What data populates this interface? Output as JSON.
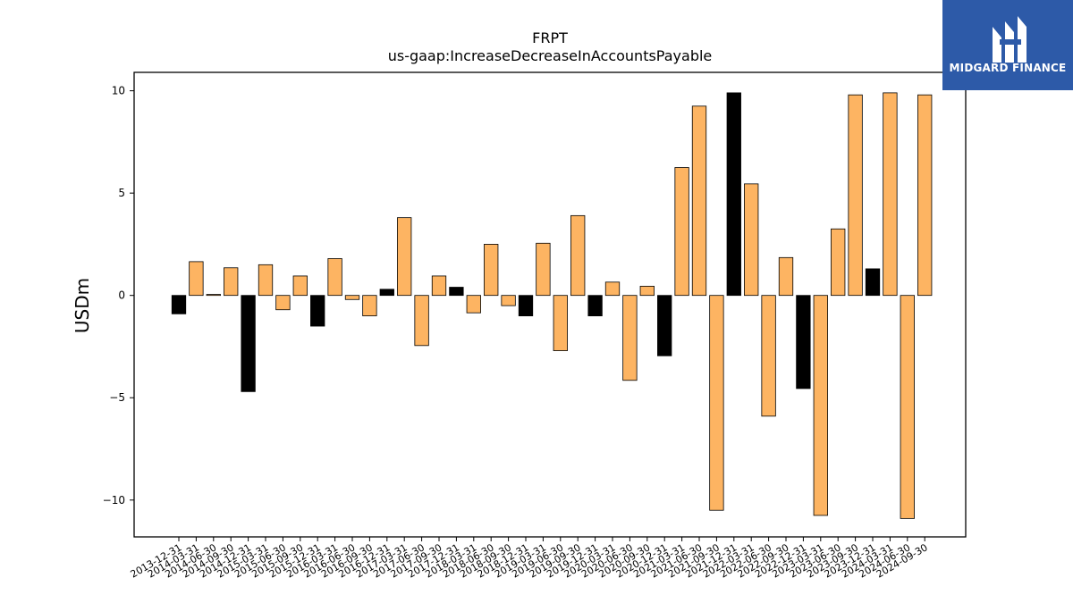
{
  "chart_data": {
    "type": "bar",
    "title": "FRPT",
    "subtitle": "us-gaap:IncreaseDecreaseInAccountsPayable",
    "xlabel": "",
    "ylabel": "USDm",
    "ylim": [
      -11.8,
      10.9
    ],
    "yticks": [
      -10,
      -5,
      0,
      5,
      10
    ],
    "ytick_labels": [
      "−10",
      "−5",
      "0",
      "5",
      "10"
    ],
    "grid": false,
    "colors": {
      "quarter": "#fdb462",
      "annual": "#000000",
      "edge": "#000000"
    },
    "categories": [
      "2013-12-31",
      "2014-03-31",
      "2014-06-30",
      "2014-09-30",
      "2014-12-31",
      "2015-03-31",
      "2015-06-30",
      "2015-09-30",
      "2015-12-31",
      "2016-03-31",
      "2016-06-30",
      "2016-09-30",
      "2016-12-31",
      "2017-03-31",
      "2017-06-30",
      "2017-09-30",
      "2017-12-31",
      "2018-03-31",
      "2018-06-30",
      "2018-09-30",
      "2018-12-31",
      "2019-03-31",
      "2019-06-30",
      "2019-09-30",
      "2019-12-31",
      "2020-03-31",
      "2020-06-30",
      "2020-09-30",
      "2020-12-31",
      "2021-03-31",
      "2021-06-30",
      "2021-09-30",
      "2021-12-31",
      "2022-03-31",
      "2022-06-30",
      "2022-09-30",
      "2022-12-31",
      "2023-03-31",
      "2023-06-30",
      "2023-09-30",
      "2023-12-31",
      "2024-03-31",
      "2024-06-30",
      "2024-09-30"
    ],
    "values": [
      -0.9,
      1.65,
      0.05,
      1.35,
      -4.7,
      1.5,
      -0.7,
      0.95,
      -1.5,
      1.8,
      -0.2,
      -1.0,
      0.3,
      3.8,
      -2.45,
      0.95,
      0.4,
      -0.85,
      2.5,
      -0.5,
      -1.0,
      2.55,
      -2.7,
      3.9,
      -1.0,
      0.65,
      -4.15,
      0.45,
      -2.95,
      6.25,
      9.25,
      -10.5,
      9.9,
      5.45,
      -5.9,
      1.85,
      -4.55,
      -10.75,
      3.25,
      9.8,
      1.3,
      9.9,
      -10.9,
      9.8
    ],
    "annual": [
      true,
      false,
      false,
      false,
      true,
      false,
      false,
      false,
      true,
      false,
      false,
      false,
      true,
      false,
      false,
      false,
      true,
      false,
      false,
      false,
      true,
      false,
      false,
      false,
      true,
      false,
      false,
      false,
      true,
      false,
      false,
      false,
      true,
      false,
      false,
      false,
      true,
      false,
      false,
      false,
      true,
      false,
      false,
      false
    ]
  },
  "logo": {
    "text": "MIDGARD FINANCE"
  }
}
